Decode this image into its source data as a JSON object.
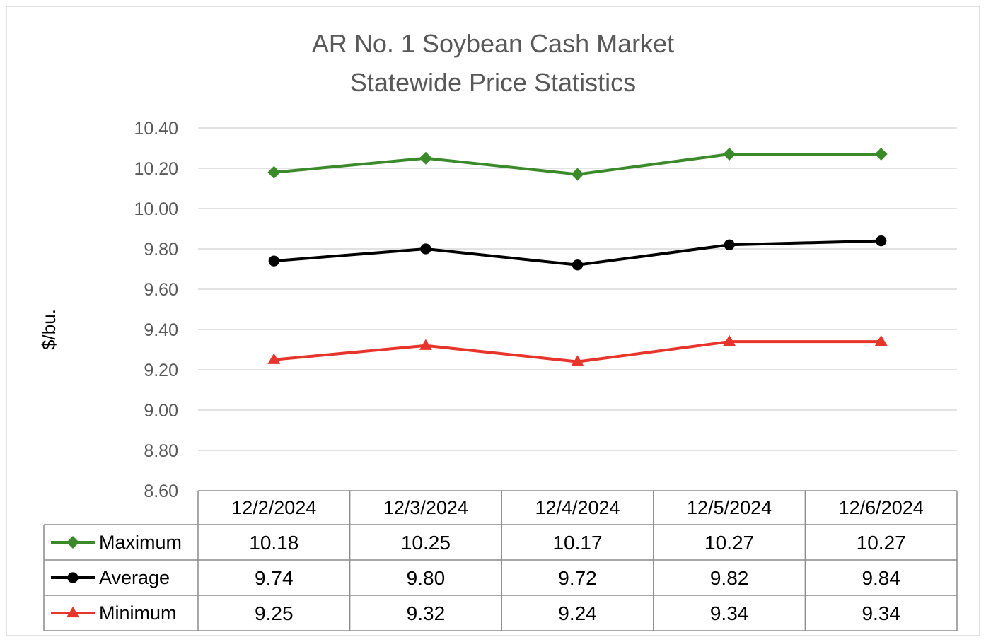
{
  "chart_data": {
    "type": "line",
    "title": "AR No. 1 Soybean Cash Market",
    "subtitle": "Statewide Price Statistics",
    "ylabel": "$/bu.",
    "xlabel": "",
    "categories": [
      "12/2/2024",
      "12/3/2024",
      "12/4/2024",
      "12/5/2024",
      "12/6/2024"
    ],
    "ylim": [
      8.6,
      10.4
    ],
    "ystep": 0.2,
    "yticks": [
      "8.60",
      "8.80",
      "9.00",
      "9.20",
      "9.40",
      "9.60",
      "9.80",
      "10.00",
      "10.20",
      "10.40"
    ],
    "grid": true,
    "legend": "data-table",
    "series": [
      {
        "name": "Maximum",
        "color": "#3a8a2a",
        "marker": "diamond",
        "values": [
          10.18,
          10.25,
          10.17,
          10.27,
          10.27
        ],
        "labels": [
          "10.18",
          "10.25",
          "10.17",
          "10.27",
          "10.27"
        ]
      },
      {
        "name": "Average",
        "color": "#000000",
        "marker": "circle",
        "values": [
          9.74,
          9.8,
          9.72,
          9.82,
          9.84
        ],
        "labels": [
          "9.74",
          "9.80",
          "9.72",
          "9.82",
          "9.84"
        ]
      },
      {
        "name": "Minimum",
        "color": "#e8352b",
        "marker": "triangle",
        "values": [
          9.25,
          9.32,
          9.24,
          9.34,
          9.34
        ],
        "labels": [
          "9.25",
          "9.32",
          "9.24",
          "9.34",
          "9.34"
        ]
      }
    ]
  }
}
